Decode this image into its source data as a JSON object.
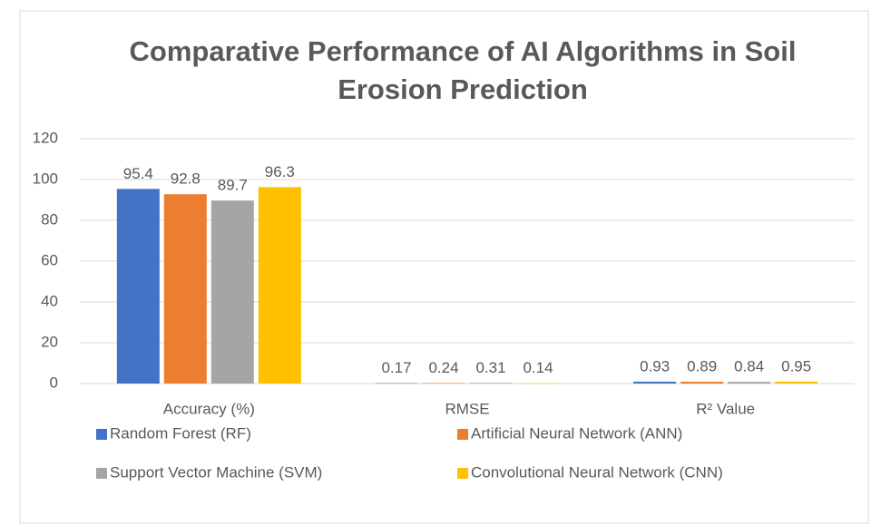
{
  "chart_data": {
    "type": "bar",
    "title": "Comparative Performance of AI Algorithms in Soil Erosion Prediction",
    "categories": [
      "Accuracy (%)",
      "RMSE",
      "R² Value"
    ],
    "series": [
      {
        "name": "Random Forest (RF)",
        "color": "#4472c4",
        "values": [
          95.4,
          0.17,
          0.93
        ]
      },
      {
        "name": "Artificial Neural Network (ANN)",
        "color": "#ed7d31",
        "values": [
          92.8,
          0.24,
          0.89
        ]
      },
      {
        "name": "Support Vector Machine (SVM)",
        "color": "#a5a5a5",
        "values": [
          89.7,
          0.31,
          0.84
        ]
      },
      {
        "name": "Convolutional Neural Network (CNN)",
        "color": "#ffc000",
        "values": [
          96.3,
          0.14,
          0.95
        ]
      }
    ],
    "ylim": [
      0,
      120
    ],
    "yticks": [
      0,
      20,
      40,
      60,
      80,
      100,
      120
    ],
    "grid": true,
    "legend": "bottom"
  }
}
